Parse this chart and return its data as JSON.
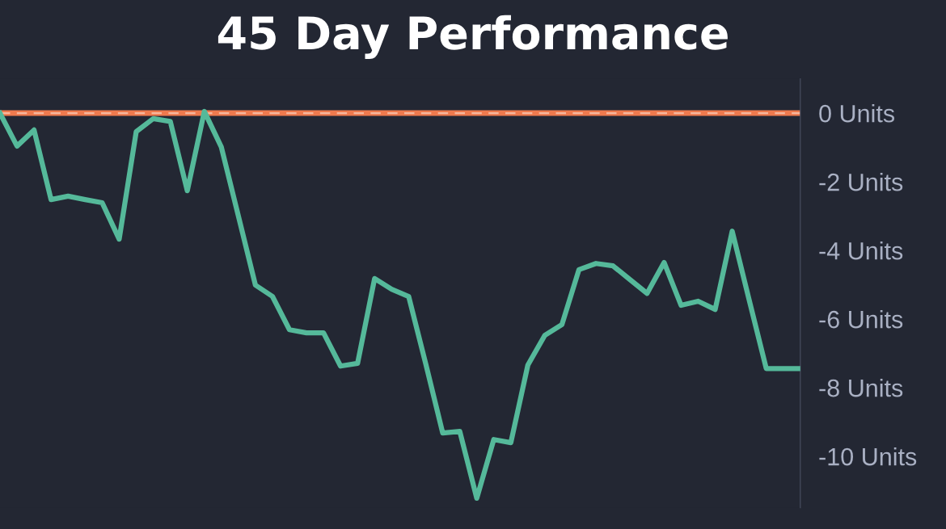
{
  "chart_data": {
    "type": "line",
    "title": "45 Day Performance",
    "categories": [
      null,
      null,
      null,
      null,
      null,
      null,
      null,
      null,
      null,
      null,
      null,
      null,
      null,
      null,
      null,
      null,
      null,
      null,
      null,
      null,
      null,
      null,
      null,
      null,
      null,
      null,
      null,
      null,
      null,
      null,
      null,
      null,
      null,
      null,
      null,
      null,
      null,
      null,
      null,
      null,
      null,
      null,
      null,
      null,
      null,
      null,
      null,
      null
    ],
    "series": [
      {
        "color": "#55b99a",
        "values": [
          0,
          -0.96,
          -0.49,
          -2.52,
          -2.42,
          -2.52,
          -2.61,
          -3.67,
          -0.54,
          -0.16,
          -0.24,
          -2.26,
          0.05,
          -0.99,
          -3.0,
          -5.01,
          -5.34,
          -6.31,
          -6.4,
          -6.4,
          -7.37,
          -7.29,
          -4.82,
          -5.13,
          -5.34,
          -7.3,
          -9.32,
          -9.27,
          -11.22,
          -9.51,
          -9.6,
          -7.34,
          -6.47,
          -6.16,
          -4.56,
          -4.38,
          -4.45,
          -4.85,
          -5.25,
          -4.35,
          -5.6,
          -5.48,
          -5.72,
          -3.44,
          -5.45,
          -7.44,
          -7.44,
          -7.44
        ]
      }
    ],
    "ylim": [
      -11.5,
      1
    ],
    "yticks": [
      {
        "value": 0,
        "label": "0 Units"
      },
      {
        "value": -2,
        "label": "-2 Units"
      },
      {
        "value": -4,
        "label": "-4 Units"
      },
      {
        "value": -6,
        "label": "-6 Units"
      },
      {
        "value": -8,
        "label": "-8 Units"
      },
      {
        "value": -10,
        "label": "-10 Units"
      }
    ],
    "ref_lines": [
      {
        "axis": "y",
        "value": 0,
        "color": "#ee7a4e",
        "line_style": "solid"
      },
      {
        "axis": "y",
        "value": 0,
        "color": "#f6b89e",
        "line_style": "dashed"
      }
    ],
    "grid": false,
    "legend": false,
    "marker": "none",
    "line_style": "solid"
  }
}
